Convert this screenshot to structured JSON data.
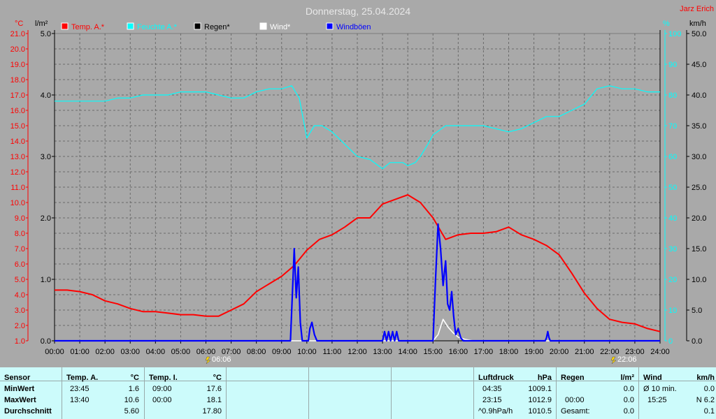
{
  "header": {
    "title": "Donnerstag, 25.04.2024",
    "author": "Jarz Erich",
    "unit_temp": "°C",
    "unit_rain": "l/m²",
    "unit_humidity": "%",
    "unit_wind": "km/h"
  },
  "legend": [
    {
      "label": "Temp. A.*",
      "color": "#ff0000"
    },
    {
      "label": "Feuchte A.*",
      "color": "#00ffff"
    },
    {
      "label": "Regen*",
      "color": "#000000"
    },
    {
      "label": "Wind*",
      "color": "#ffffff"
    },
    {
      "label": "Windböen",
      "color": "#0000ff"
    }
  ],
  "axes": {
    "temp_ticks": [
      "1.0",
      "2.0",
      "3.0",
      "4.0",
      "5.0",
      "6.0",
      "7.0",
      "8.0",
      "9.0",
      "10.0",
      "11.0",
      "12.0",
      "13.0",
      "14.0",
      "15.0",
      "16.0",
      "17.0",
      "18.0",
      "19.0",
      "20.0",
      "21.0"
    ],
    "rain_ticks": [
      "0.0",
      "1.0",
      "2.0",
      "3.0",
      "4.0",
      "5.0"
    ],
    "humidity_ticks": [
      "0",
      "10",
      "20",
      "30",
      "40",
      "50",
      "60",
      "70",
      "80",
      "90",
      "100"
    ],
    "wind_ticks": [
      "0.0",
      "5.0",
      "10.0",
      "15.0",
      "20.0",
      "25.0",
      "30.0",
      "35.0",
      "40.0",
      "45.0",
      "50.0"
    ],
    "time_ticks": [
      "00:00",
      "01:00",
      "02:00",
      "03:00",
      "04:00",
      "05:00",
      "06:00",
      "07:00",
      "08:00",
      "09:00",
      "10:00",
      "11:00",
      "12:00",
      "13:00",
      "14:00",
      "15:00",
      "16:00",
      "17:00",
      "18:00",
      "19:00",
      "20:00",
      "21:00",
      "22:00",
      "23:00",
      "24:00"
    ]
  },
  "sun": {
    "sunrise": "06:06",
    "sunset": "22:06"
  },
  "chart_data": {
    "type": "line",
    "title": "Donnerstag, 25.04.2024",
    "xlabel": "",
    "x_unit": "hours",
    "xlim": [
      0,
      24
    ],
    "grid": true,
    "axes": {
      "temperature": {
        "unit": "°C",
        "range": [
          1,
          21
        ]
      },
      "rain": {
        "unit": "l/m²",
        "range": [
          0,
          5
        ]
      },
      "humidity": {
        "unit": "%",
        "range": [
          0,
          100
        ]
      },
      "wind": {
        "unit": "km/h",
        "range": [
          0,
          50
        ]
      }
    },
    "series": [
      {
        "name": "Temp. A.*",
        "axis": "temperature",
        "color": "#ff0000",
        "x": [
          0,
          0.5,
          1,
          1.5,
          2,
          2.5,
          3,
          3.5,
          4,
          4.5,
          5,
          5.5,
          6,
          6.5,
          7,
          7.5,
          8,
          8.5,
          9,
          9.5,
          10,
          10.5,
          11,
          11.5,
          12,
          12.5,
          13,
          13.5,
          14,
          14.5,
          15,
          15.5,
          16,
          16.5,
          17,
          17.5,
          18,
          18.5,
          19,
          19.5,
          20,
          20.5,
          21,
          21.5,
          22,
          22.5,
          23,
          23.5,
          24
        ],
        "y": [
          4.3,
          4.3,
          4.2,
          4.0,
          3.6,
          3.4,
          3.1,
          2.9,
          2.9,
          2.8,
          2.7,
          2.7,
          2.6,
          2.6,
          3.0,
          3.4,
          4.2,
          4.7,
          5.2,
          5.9,
          6.9,
          7.6,
          7.9,
          8.4,
          9.0,
          9.0,
          9.9,
          10.2,
          10.5,
          10.0,
          9.0,
          7.6,
          7.9,
          8.0,
          8.0,
          8.1,
          8.4,
          7.9,
          7.6,
          7.2,
          6.6,
          5.4,
          4.1,
          3.1,
          2.4,
          2.2,
          2.1,
          1.8,
          1.6
        ]
      },
      {
        "name": "Feuchte A.*",
        "axis": "humidity",
        "color": "#00ffff",
        "x": [
          0,
          0.5,
          1,
          1.5,
          2,
          2.5,
          3,
          3.5,
          4,
          4.5,
          5,
          5.5,
          6,
          6.5,
          7,
          7.5,
          8,
          8.5,
          9,
          9.4,
          9.7,
          10,
          10.3,
          10.6,
          11,
          11.5,
          12,
          12.5,
          13,
          13.3,
          13.5,
          13.8,
          14,
          14.3,
          14.5,
          14.8,
          15,
          15.5,
          16,
          16.5,
          17,
          17.5,
          18,
          18.5,
          19,
          19.5,
          20,
          20.5,
          21,
          21.5,
          22,
          22.5,
          23,
          23.5,
          24
        ],
        "y": [
          78,
          78,
          78,
          78,
          78,
          79,
          79,
          80,
          80,
          80,
          81,
          81,
          81,
          80,
          79,
          79,
          81,
          82,
          82,
          83,
          79,
          66,
          70,
          70,
          68,
          64,
          60,
          59,
          56,
          58,
          58,
          58,
          57,
          58,
          60,
          64,
          67,
          70,
          70,
          70,
          70,
          69,
          68,
          69,
          71,
          73,
          73,
          75,
          77,
          82,
          83,
          82,
          82,
          81,
          81
        ]
      },
      {
        "name": "Regen*",
        "axis": "rain",
        "color": "#000000",
        "x": [
          0,
          24
        ],
        "y": [
          0,
          0
        ]
      },
      {
        "name": "Wind*",
        "axis": "wind",
        "color": "#ffffff",
        "x": [
          0,
          15.0,
          15.2,
          15.4,
          15.6,
          15.8,
          16.0,
          16.3,
          16.6,
          24
        ],
        "y": [
          0,
          0,
          1.0,
          3.5,
          2.2,
          1.3,
          0.6,
          0.2,
          0,
          0
        ]
      },
      {
        "name": "Windböen",
        "axis": "wind",
        "color": "#0000ff",
        "x": [
          0,
          9.35,
          9.5,
          9.58,
          9.66,
          9.74,
          9.82,
          9.9,
          9.98,
          10.06,
          10.12,
          10.2,
          10.3,
          10.4,
          10.45,
          13.0,
          13.08,
          13.16,
          13.24,
          13.32,
          13.4,
          13.48,
          13.56,
          13.64,
          13.72,
          15.0,
          15.1,
          15.2,
          15.3,
          15.4,
          15.5,
          15.58,
          15.66,
          15.74,
          15.82,
          15.9,
          16.0,
          16.1,
          16.2,
          16.3,
          16.4,
          19.45,
          19.5,
          19.55,
          19.6,
          19.65,
          24
        ],
        "y": [
          0,
          0,
          15,
          7,
          12,
          3,
          0,
          0,
          0,
          0,
          2,
          3,
          1,
          0,
          0,
          0,
          1.5,
          0,
          1.5,
          0,
          1.5,
          0,
          1.5,
          0,
          0,
          0,
          10,
          19,
          15,
          9,
          13,
          6,
          5,
          8,
          4,
          1,
          2,
          0.5,
          0,
          0,
          0,
          0,
          0.5,
          1.5,
          0.5,
          0,
          0
        ]
      }
    ]
  },
  "stats": {
    "sensor": {
      "header": "Sensor",
      "rows": [
        "MinWert",
        "MaxWert",
        "Durchschnitt"
      ]
    },
    "temp_a": {
      "header": "Temp. A.",
      "unit": "°C",
      "rows": [
        {
          "time": "23:45",
          "value": "1.6"
        },
        {
          "time": "13:40",
          "value": "10.6"
        },
        {
          "time": "",
          "value": "5.60"
        }
      ]
    },
    "temp_i": {
      "header": "Temp. I.",
      "unit": "°C",
      "rows": [
        {
          "time": "09:00",
          "value": "17.6"
        },
        {
          "time": "00:00",
          "value": "18.1"
        },
        {
          "time": "",
          "value": "17.80"
        }
      ]
    },
    "pressure": {
      "header": "Luftdruck",
      "unit": "hPa",
      "rows": [
        {
          "time": "04:35",
          "value": "1009.1"
        },
        {
          "time": "23:15",
          "value": "1012.9"
        },
        {
          "time": "^0.9hPa/h",
          "value": "1010.5"
        }
      ]
    },
    "rain": {
      "header": "Regen",
      "unit": "l/m²",
      "rows": [
        {
          "time": "",
          "value": "0.0"
        },
        {
          "time": "00:00",
          "value": "0.0"
        },
        {
          "time": "Gesamt:",
          "value": "0.0"
        }
      ]
    },
    "wind": {
      "header": "Wind",
      "unit": "km/h",
      "rows": [
        {
          "time": "Ø 10 min.",
          "value": "0.0"
        },
        {
          "time": "15:25",
          "value": "N 6.2"
        },
        {
          "time": "",
          "value": "0.1"
        }
      ]
    }
  }
}
